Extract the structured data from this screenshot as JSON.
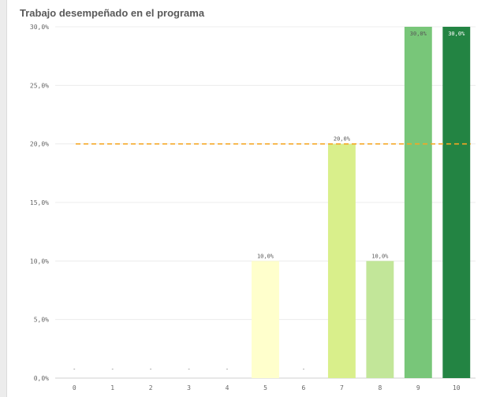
{
  "title": "Trabajo desempeñado en el programa",
  "chart_data": {
    "type": "bar",
    "title": "Trabajo desempeñado en el programa",
    "xlabel": "",
    "ylabel": "",
    "categories": [
      "0",
      "1",
      "2",
      "3",
      "4",
      "5",
      "6",
      "7",
      "8",
      "9",
      "10"
    ],
    "values": [
      0,
      0,
      0,
      0,
      0,
      10,
      0,
      20,
      10,
      30,
      30
    ],
    "data_labels": [
      "-",
      "-",
      "-",
      "-",
      "-",
      "10,0%",
      "-",
      "20,0%",
      "10,0%",
      "30,0%",
      "30,0%"
    ],
    "bar_colors": [
      "#ffffff",
      "#ffffff",
      "#ffffff",
      "#ffffff",
      "#ffffff",
      "#ffffcc",
      "#ffffff",
      "#d9ef8b",
      "#c2e699",
      "#78c679",
      "#238443"
    ],
    "label_colors": [
      "#666666",
      "#666666",
      "#666666",
      "#666666",
      "#666666",
      "#555555",
      "#666666",
      "#555555",
      "#555555",
      "#555555",
      "#ffffff"
    ],
    "ylim": [
      0,
      30
    ],
    "yticks": [
      0,
      5,
      10,
      15,
      20,
      25,
      30
    ],
    "ytick_labels": [
      "0,0%",
      "5,0%",
      "10,0%",
      "15,0%",
      "20,0%",
      "25,0%",
      "30,0%"
    ],
    "reference_line": {
      "value": 20,
      "color": "#f5a623",
      "style": "dashed"
    },
    "grid": true,
    "legend": "none"
  }
}
